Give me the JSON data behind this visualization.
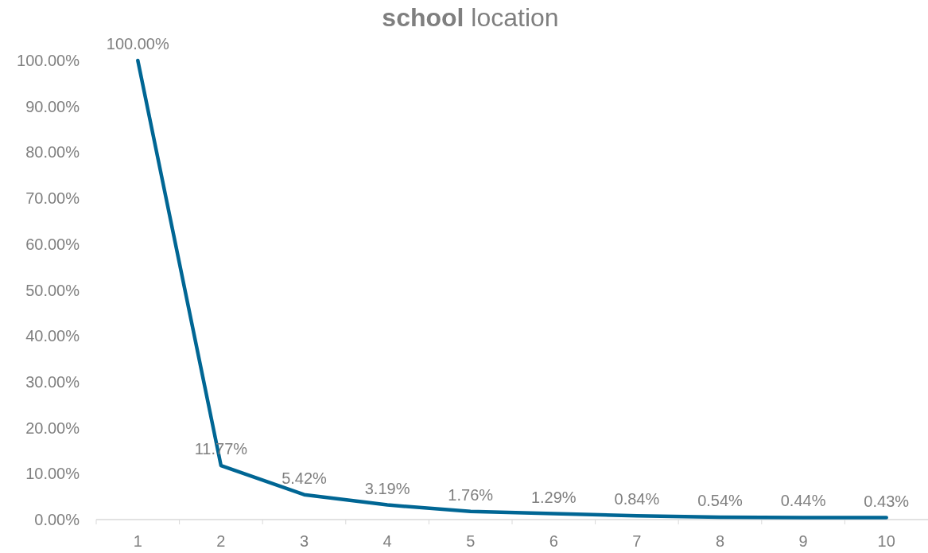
{
  "chart_data": {
    "type": "line",
    "title": "school location",
    "categories": [
      "1",
      "2",
      "3",
      "4",
      "5",
      "6",
      "7",
      "8",
      "9",
      "10"
    ],
    "series": [
      {
        "color": "#006694",
        "values": [
          100,
          11.77,
          5.42,
          3.19,
          1.76,
          1.29,
          0.84,
          0.54,
          0.44,
          0.43
        ],
        "value_labels": [
          "100.00%",
          "11.77%",
          "5.42%",
          "3.19%",
          "1.76%",
          "1.29%",
          "0.84%",
          "0.54%",
          "0.44%",
          "0.43%"
        ]
      }
    ],
    "ylim": [
      0,
      100
    ],
    "yticks": [
      {
        "value": 0,
        "label": "0.00%"
      },
      {
        "value": 10,
        "label": "10.00%"
      },
      {
        "value": 20,
        "label": "20.00%"
      },
      {
        "value": 30,
        "label": "30.00%"
      },
      {
        "value": 40,
        "label": "40.00%"
      },
      {
        "value": 50,
        "label": "50.00%"
      },
      {
        "value": 60,
        "label": "60.00%"
      },
      {
        "value": 70,
        "label": "70.00%"
      },
      {
        "value": 80,
        "label": "80.00%"
      },
      {
        "value": 90,
        "label": "90.00%"
      },
      {
        "value": 100,
        "label": "100.00%"
      }
    ],
    "grid": false,
    "marker": "none",
    "line_style": "solid"
  }
}
